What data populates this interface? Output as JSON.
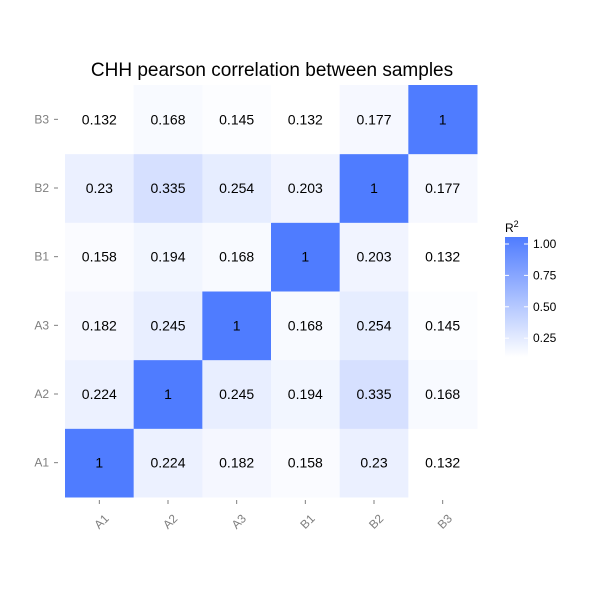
{
  "chart_data": {
    "type": "heatmap",
    "title": "CHH pearson correlation between samples",
    "xlabel": "",
    "ylabel": "",
    "x_categories": [
      "A1",
      "A2",
      "A3",
      "B1",
      "B2",
      "B3"
    ],
    "y_categories": [
      "A1",
      "A2",
      "A3",
      "B1",
      "B2",
      "B3"
    ],
    "values": [
      [
        1,
        0.224,
        0.182,
        0.158,
        0.23,
        0.132
      ],
      [
        0.224,
        1,
        0.245,
        0.194,
        0.335,
        0.168
      ],
      [
        0.182,
        0.245,
        1,
        0.168,
        0.254,
        0.145
      ],
      [
        0.158,
        0.194,
        0.168,
        1,
        0.203,
        0.132
      ],
      [
        0.23,
        0.335,
        0.254,
        0.203,
        1,
        0.177
      ],
      [
        0.132,
        0.168,
        0.145,
        0.132,
        0.177,
        1
      ]
    ],
    "value_labels": [
      [
        "1",
        "0.224",
        "0.182",
        "0.158",
        "0.23",
        "0.132"
      ],
      [
        "0.224",
        "1",
        "0.245",
        "0.194",
        "0.335",
        "0.168"
      ],
      [
        "0.182",
        "0.245",
        "1",
        "0.168",
        "0.254",
        "0.145"
      ],
      [
        "0.158",
        "0.194",
        "0.168",
        "1",
        "0.203",
        "0.132"
      ],
      [
        "0.23",
        "0.335",
        "0.254",
        "0.203",
        "1",
        "0.177"
      ],
      [
        "0.132",
        "0.168",
        "0.145",
        "0.132",
        "0.177",
        "1"
      ]
    ],
    "color_scale": {
      "low_color": "#ffffff",
      "high_color": "#4f7cff",
      "domain": [
        0.132,
        1.0
      ]
    },
    "legend": {
      "title": "R",
      "title_superscript": "2",
      "position": "right",
      "ticks": [
        1.0,
        0.75,
        0.5,
        0.25
      ],
      "tick_labels": [
        "1.00",
        "0.75",
        "0.50",
        "0.25"
      ]
    },
    "grid": false
  }
}
